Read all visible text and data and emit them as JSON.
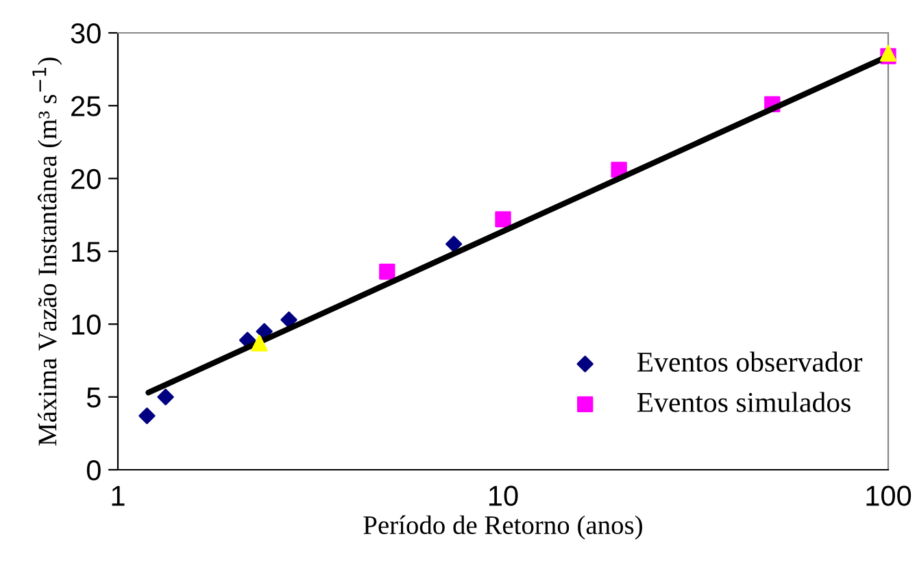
{
  "chart_data": {
    "type": "scatter",
    "xlabel": "Período de Retorno (anos)",
    "ylabel": "Máxima Vazão Instantânea (m³ s$^{−1}$)",
    "log": "x",
    "xlim": [
      1,
      100
    ],
    "xticks": [
      1,
      10,
      100
    ],
    "ylim": [
      0,
      30
    ],
    "yticks": [
      0,
      5,
      10,
      15,
      20,
      25,
      30
    ],
    "grid": false,
    "legend": "bottom right",
    "series": [
      {
        "type": "line",
        "color": "#000000",
        "marker": "none",
        "line_style": "solid",
        "x": [
          1.2,
          100
        ],
        "values": [
          5.3,
          28.4
        ]
      },
      {
        "name": "Eventos observador",
        "color": "#000080",
        "marker": "diamond",
        "x": [
          1.19,
          1.33,
          2.17,
          2.4,
          2.78,
          7.45
        ],
        "values": [
          3.7,
          5.0,
          8.9,
          9.5,
          10.3,
          15.5
        ]
      },
      {
        "color": "#ffff00",
        "marker": "triangle",
        "x": [
          2.33,
          100
        ],
        "values": [
          8.7,
          28.6
        ]
      },
      {
        "name": "Eventos simulados",
        "color": "#ff00ff",
        "marker": "square",
        "x": [
          5,
          10,
          20,
          50,
          100
        ],
        "values": [
          13.6,
          17.2,
          20.6,
          25.1,
          28.4
        ]
      }
    ]
  }
}
